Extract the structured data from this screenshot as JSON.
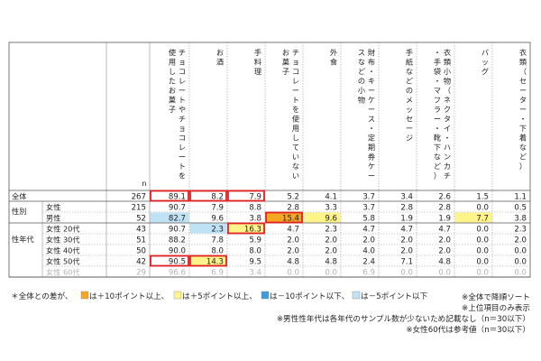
{
  "table": {
    "n_label": "n",
    "columns": [
      "チョコレートやチョコレートを使用したお菓子",
      "お酒",
      "手料理",
      "チョコレートを使用していないお菓子",
      "外食",
      "財布・キーケース・定期券ケースなどの小物",
      "手紙などのメッセージ",
      "衣類小物（ネクタイ・ハンカチ・手袋・マフラー・靴下など）",
      "バッグ",
      "衣類（セーター・下着など）"
    ],
    "rows": [
      {
        "group": "",
        "label": "全体",
        "n": 267,
        "values": [
          "89.1",
          "8.2",
          "7.9",
          "5.2",
          "4.1",
          "3.7",
          "3.4",
          "2.6",
          "1.5",
          "1.1"
        ]
      },
      {
        "group": "性別",
        "label": "女性",
        "n": 215,
        "values": [
          "90.7",
          "7.9",
          "8.8",
          "2.8",
          "3.3",
          "3.7",
          "2.8",
          "2.8",
          "0.0",
          "0.5"
        ]
      },
      {
        "group": "",
        "label": "男性",
        "n": 52,
        "values": [
          "82.7",
          "9.6",
          "3.8",
          "15.4",
          "9.6",
          "5.8",
          "1.9",
          "1.9",
          "7.7",
          "3.8"
        ]
      },
      {
        "group": "性年代",
        "label": "女性 20代",
        "n": 43,
        "values": [
          "90.7",
          "2.3",
          "16.3",
          "4.7",
          "2.3",
          "4.7",
          "4.7",
          "4.7",
          "0.0",
          "2.3"
        ]
      },
      {
        "group": "",
        "label": "女性 30代",
        "n": 51,
        "values": [
          "88.2",
          "7.8",
          "5.9",
          "2.0",
          "2.0",
          "2.0",
          "2.0",
          "2.0",
          "0.0",
          "2.0"
        ]
      },
      {
        "group": "",
        "label": "女性 40代",
        "n": 50,
        "values": [
          "90.0",
          "8.0",
          "8.0",
          "2.0",
          "2.0",
          "4.0",
          "2.0",
          "2.0",
          "0.0",
          "0.0"
        ]
      },
      {
        "group": "",
        "label": "女性 50代",
        "n": 42,
        "values": [
          "90.5",
          "14.3",
          "9.5",
          "4.8",
          "4.8",
          "2.4",
          "7.1",
          "4.8",
          "0.0",
          "0.0"
        ]
      },
      {
        "group": "",
        "label": "女性 60代",
        "n": 29,
        "values": [
          "96.6",
          "6.9",
          "3.4",
          "0.0",
          "0.0",
          "6.9",
          "0.0",
          "0.0",
          "0.0",
          "0.0"
        ],
        "dimmed": true
      }
    ],
    "highlight_colors": {
      "plus10": "#f5a623",
      "plus5": "#fff48a",
      "minus10": "#3d9ddb",
      "minus5": "#bfe3f5"
    },
    "top_border_color": "#e02020",
    "cell_highlights": [
      {
        "row": 2,
        "col": 0,
        "level": "minus5"
      },
      {
        "row": 2,
        "col": 3,
        "level": "plus10"
      },
      {
        "row": 2,
        "col": 4,
        "level": "plus5"
      },
      {
        "row": 2,
        "col": 8,
        "level": "plus5"
      },
      {
        "row": 3,
        "col": 1,
        "level": "minus5"
      },
      {
        "row": 3,
        "col": 2,
        "level": "plus5"
      },
      {
        "row": 6,
        "col": 1,
        "level": "plus5"
      }
    ],
    "top_boxes": [
      {
        "row": 0,
        "col": 0
      },
      {
        "row": 0,
        "col": 1
      },
      {
        "row": 0,
        "col": 2
      },
      {
        "row": 2,
        "col": 3
      },
      {
        "row": 3,
        "col": 2
      },
      {
        "row": 6,
        "col": 0
      },
      {
        "row": 6,
        "col": 1
      }
    ]
  },
  "legend": {
    "prefix": "＊全体との差が、",
    "plus10": "は＋10ポイント以上、",
    "plus5": "は＋5ポイント以上、",
    "minus10": "は－10ポイント以下、",
    "minus5": "は－5ポイント以下"
  },
  "notes": [
    "※全体で降順ソート",
    "※上位項目のみ表示",
    "※男性性年代は各年代のサンプル数が少ないため記載なし（n＝30以下）",
    "※女性60代は参考値（n＝30以下）"
  ]
}
